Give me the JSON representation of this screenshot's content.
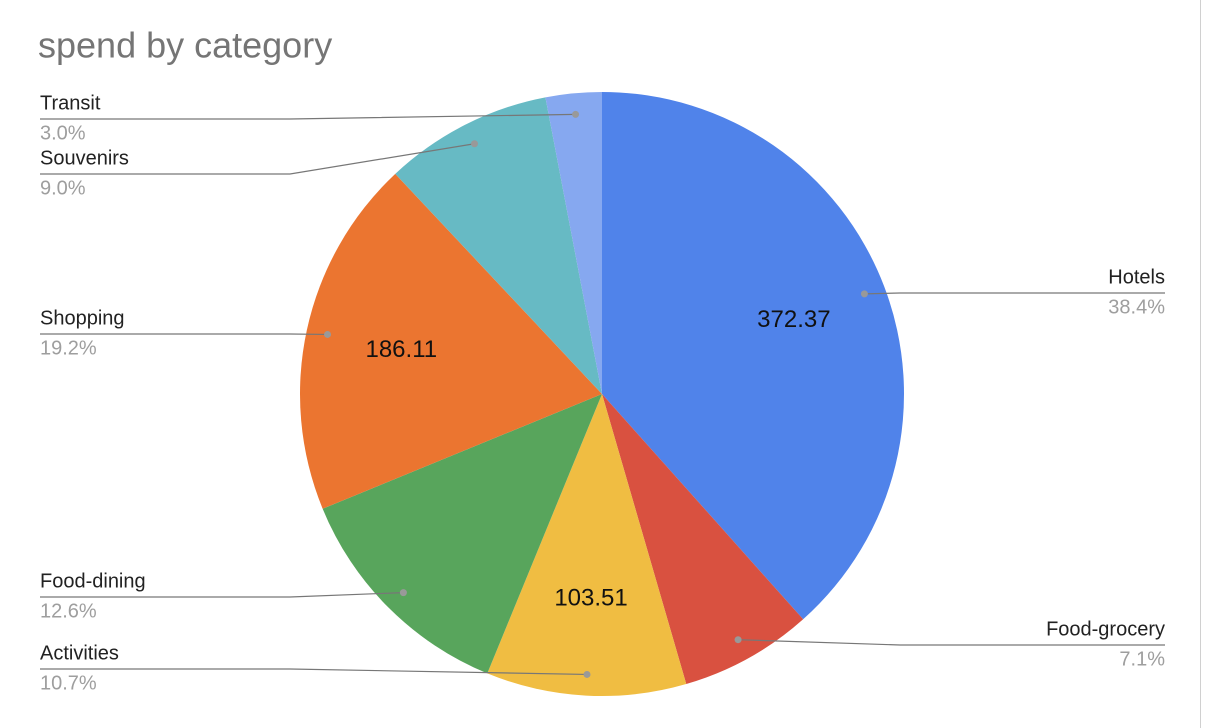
{
  "chart_data": {
    "type": "pie",
    "title": "spend by category",
    "categories": [
      "Hotels",
      "Food-grocery",
      "Activities",
      "Food-dining",
      "Shopping",
      "Souvenirs",
      "Transit"
    ],
    "values": [
      38.4,
      7.1,
      10.7,
      12.6,
      19.2,
      9.0,
      3.0
    ],
    "value_labels": [
      "38.4%",
      "7.1%",
      "10.7%",
      "12.6%",
      "19.2%",
      "9.0%",
      "3.0%"
    ],
    "data_labels": [
      372.37,
      null,
      103.51,
      null,
      186.11,
      null,
      null
    ],
    "colors": [
      "#5083ea",
      "#d95140",
      "#f0bd42",
      "#58a55c",
      "#eb7530",
      "#67bac4",
      "#86a8f0"
    ]
  }
}
